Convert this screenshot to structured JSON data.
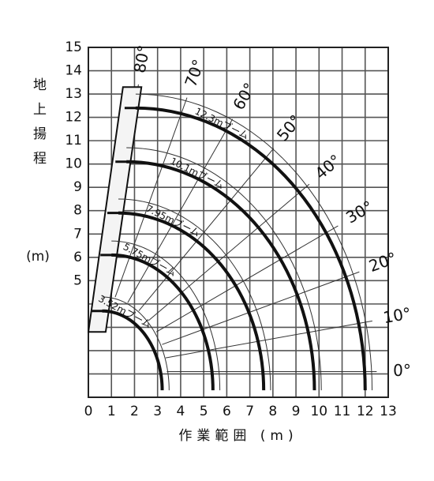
{
  "chart_data": {
    "type": "working-range",
    "x_label": "作業範囲 (m)",
    "y_label": "地上揚程",
    "y_unit": "(m)",
    "xlim": [
      0,
      13
    ],
    "ylim": [
      0,
      15
    ],
    "xticks": [
      0,
      1,
      2,
      3,
      4,
      5,
      6,
      7,
      8,
      9,
      10,
      11,
      12,
      13
    ],
    "yticks": [
      {
        "value": 0,
        "label": null
      },
      {
        "value": 1,
        "label": null
      },
      {
        "value": 2,
        "label": null
      },
      {
        "value": 3,
        "label": null
      },
      {
        "value": 4,
        "label": null
      },
      5,
      6,
      7,
      8,
      9,
      10,
      11,
      12,
      13,
      14,
      15
    ],
    "grid": true,
    "booms": [
      {
        "name": "3.52mブーム",
        "top": [
          0.6,
          3.7
        ],
        "end": [
          3.2,
          0.3
        ]
      },
      {
        "name": "5.75mブーム",
        "top": [
          1.0,
          6.1
        ],
        "end": [
          5.4,
          0.3
        ]
      },
      {
        "name": "7.95mブーム",
        "top": [
          1.3,
          7.9
        ],
        "end": [
          7.6,
          0.3
        ]
      },
      {
        "name": "10.1mブーム",
        "top": [
          1.65,
          10.1
        ],
        "end": [
          9.8,
          0.3
        ]
      },
      {
        "name": "12.3mブーム",
        "top": [
          2.05,
          12.4
        ],
        "end": [
          12.0,
          0.3
        ]
      }
    ],
    "angles": [
      {
        "value": 0,
        "label": "0°"
      },
      {
        "value": 10,
        "label": "10°"
      },
      {
        "value": 20,
        "label": "20°"
      },
      {
        "value": 30,
        "label": "30°"
      },
      {
        "value": 40,
        "label": "40°"
      },
      {
        "value": 50,
        "label": "50°"
      },
      {
        "value": 60,
        "label": "60°"
      },
      {
        "value": 70,
        "label": "70°"
      },
      {
        "value": 80,
        "label": "80°"
      }
    ]
  }
}
